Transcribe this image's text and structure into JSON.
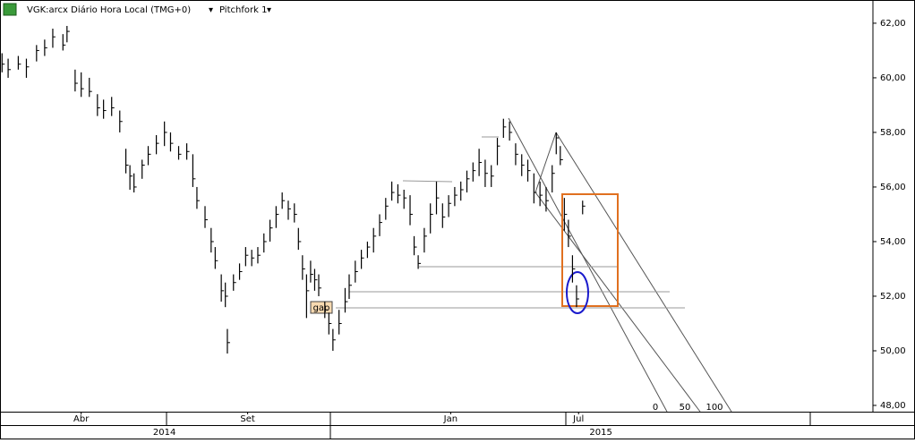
{
  "chart_data": {
    "type": "ohlc",
    "title": "VGK:arcx Diário Hora Local (TMG+0)",
    "indicator": "Pitchfork 1",
    "annotation": "gap",
    "pitchfork_labels": [
      0,
      50,
      100
    ],
    "x": [
      1,
      4,
      9,
      13,
      18,
      22,
      26,
      31,
      33,
      37,
      40,
      44,
      48,
      51,
      55,
      59,
      62,
      64,
      66,
      70,
      73,
      77,
      81,
      84,
      88,
      92,
      95,
      97,
      101,
      104,
      106,
      109,
      111,
      112,
      115,
      118,
      121,
      124,
      127,
      130,
      133,
      136,
      139,
      142,
      145,
      147,
      149,
      151,
      153,
      155,
      157,
      160,
      162,
      164,
      167,
      170,
      172,
      175,
      178,
      181,
      184,
      187,
      190,
      193,
      196,
      199,
      202,
      204,
      206,
      209,
      212,
      215,
      218,
      221,
      224,
      227,
      230,
      233,
      236,
      239,
      242,
      245,
      248,
      251,
      254,
      257,
      260,
      263,
      266,
      269,
      272,
      274,
      276,
      278,
      280,
      282,
      284,
      287
    ],
    "high": [
      60.9,
      60.7,
      60.8,
      60.7,
      61.2,
      61.4,
      61.8,
      61.6,
      61.9,
      60.3,
      60.2,
      60.0,
      59.4,
      59.2,
      59.3,
      58.8,
      57.4,
      56.8,
      56.5,
      57.0,
      57.5,
      57.9,
      58.4,
      58.0,
      57.5,
      57.6,
      57.2,
      56.0,
      55.3,
      54.5,
      53.8,
      52.8,
      52.5,
      50.8,
      52.8,
      53.2,
      53.8,
      53.7,
      53.8,
      54.3,
      54.8,
      55.3,
      55.8,
      55.5,
      55.4,
      54.5,
      53.5,
      52.8,
      53.3,
      53.0,
      52.8,
      51.8,
      51.4,
      50.8,
      51.5,
      52.3,
      52.8,
      53.3,
      53.7,
      54.0,
      54.5,
      55.0,
      55.6,
      56.2,
      56.1,
      55.9,
      55.7,
      54.2,
      53.5,
      54.5,
      55.4,
      56.2,
      55.4,
      55.7,
      56.0,
      56.2,
      56.6,
      56.9,
      57.4,
      57.0,
      56.8,
      57.8,
      58.5,
      58.4,
      57.6,
      57.2,
      57.0,
      56.5,
      56.2,
      56.0,
      56.8,
      58.0,
      57.5,
      55.6,
      54.8,
      53.5,
      52.4,
      55.5
    ],
    "low": [
      60.2,
      60.0,
      60.3,
      60.0,
      60.6,
      60.8,
      61.1,
      61.0,
      61.3,
      59.5,
      59.3,
      59.3,
      58.6,
      58.5,
      58.6,
      58.0,
      56.5,
      55.9,
      55.8,
      56.3,
      56.8,
      57.2,
      57.5,
      57.3,
      57.0,
      57.0,
      56.0,
      55.2,
      54.5,
      53.6,
      53.0,
      51.8,
      51.6,
      49.9,
      52.2,
      52.6,
      53.1,
      53.1,
      53.2,
      53.6,
      54.0,
      54.5,
      55.2,
      54.8,
      54.7,
      53.7,
      52.6,
      51.2,
      52.5,
      52.2,
      52.0,
      51.2,
      50.6,
      50.0,
      50.6,
      51.4,
      51.9,
      52.5,
      53.0,
      53.4,
      53.6,
      54.2,
      54.8,
      55.5,
      55.4,
      55.2,
      54.6,
      53.5,
      53.0,
      53.6,
      54.3,
      55.0,
      54.5,
      54.9,
      55.3,
      55.5,
      55.8,
      56.2,
      56.4,
      56.0,
      56.0,
      56.8,
      57.8,
      57.7,
      56.8,
      56.4,
      56.2,
      55.4,
      55.3,
      55.1,
      55.8,
      57.2,
      56.8,
      54.4,
      53.8,
      52.5,
      51.6,
      55.0
    ],
    "close": [
      60.5,
      60.3,
      60.5,
      60.4,
      61.0,
      61.1,
      61.5,
      61.2,
      61.7,
      59.8,
      59.6,
      59.5,
      58.9,
      58.8,
      58.9,
      58.4,
      56.8,
      56.4,
      56.0,
      56.8,
      57.2,
      57.6,
      58.0,
      57.6,
      57.2,
      57.3,
      56.3,
      55.5,
      54.8,
      54.0,
      53.3,
      52.2,
      52.0,
      50.3,
      52.5,
      52.9,
      53.5,
      53.4,
      53.5,
      54.0,
      54.5,
      55.0,
      55.5,
      55.2,
      55.0,
      54.0,
      53.0,
      52.2,
      52.8,
      52.6,
      52.3,
      51.5,
      51.0,
      50.4,
      51.0,
      51.8,
      52.4,
      52.9,
      53.4,
      53.8,
      54.2,
      54.7,
      55.3,
      55.8,
      55.7,
      55.6,
      55.0,
      53.8,
      53.2,
      54.2,
      55.0,
      55.6,
      54.9,
      55.4,
      55.7,
      55.9,
      56.3,
      56.6,
      56.9,
      56.5,
      56.4,
      57.5,
      58.2,
      58.0,
      57.2,
      56.8,
      56.6,
      55.8,
      55.7,
      55.5,
      56.5,
      57.8,
      57.0,
      55.0,
      54.2,
      53.0,
      51.9,
      55.3
    ],
    "xlim": [
      0,
      430
    ],
    "ylim": [
      47.77,
      62.85
    ],
    "xticks": [
      {
        "value": 40,
        "label": "Abr"
      },
      {
        "value": 122,
        "label": "Set"
      },
      {
        "value": 222,
        "label": "Jan"
      },
      {
        "value": 285,
        "label": "Jul"
      }
    ],
    "year_ticks": [
      {
        "value": 81,
        "label": "2014"
      },
      {
        "value": 296,
        "label": "2015"
      }
    ],
    "yticks": [
      {
        "value": 48,
        "label": "48,00"
      },
      {
        "value": 50,
        "label": "50,00"
      },
      {
        "value": 52,
        "label": "52,00"
      },
      {
        "value": 54,
        "label": "54,00"
      },
      {
        "value": 56,
        "label": "56,00"
      },
      {
        "value": 58,
        "label": "58,00"
      },
      {
        "value": 60,
        "label": "60,00"
      },
      {
        "value": 62,
        "label": "62,00"
      }
    ],
    "color": "#000000"
  }
}
